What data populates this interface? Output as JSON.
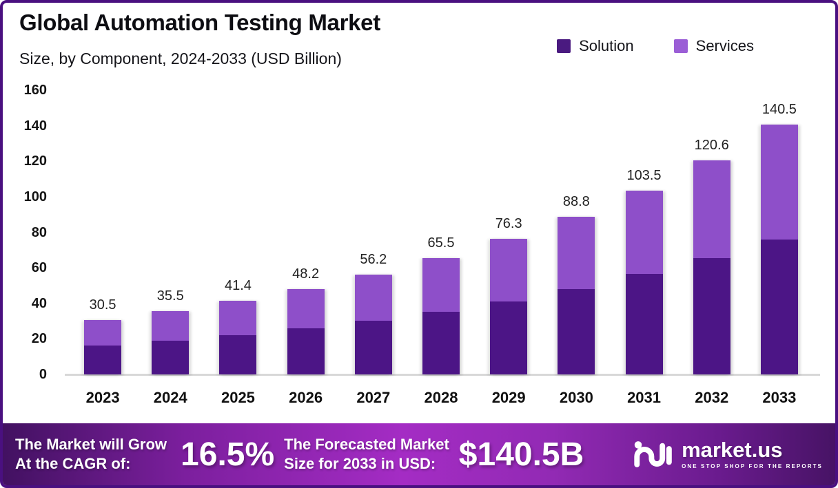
{
  "header": {
    "title": "Global Automation Testing Market",
    "subtitle": "Size, by Component, 2024-2033 (USD Billion)"
  },
  "legend": [
    {
      "label": "Solution",
      "color": "#4a1a80"
    },
    {
      "label": "Services",
      "color": "#9b5ed6"
    }
  ],
  "colors": {
    "frame_border": "#4a1080",
    "solution_bar": "#4c1586",
    "services_bar": "#8e4fc9",
    "banner_mid": "#a42cc4",
    "axis_line": "#d8d8d8"
  },
  "chart_data": {
    "type": "bar",
    "stacked": true,
    "title": "Global Automation Testing Market",
    "subtitle": "Size, by Component, 2024-2033 (USD Billion)",
    "xlabel": "",
    "ylabel": "",
    "categories": [
      "2023",
      "2024",
      "2025",
      "2026",
      "2027",
      "2028",
      "2029",
      "2030",
      "2031",
      "2032",
      "2033"
    ],
    "series": [
      {
        "name": "Solution",
        "color": "#4c1586",
        "values": [
          16.3,
          19.0,
          22.2,
          26.0,
          30.2,
          35.2,
          41.1,
          48.1,
          56.5,
          65.4,
          76.1
        ]
      },
      {
        "name": "Services",
        "color": "#8e4fc9",
        "values": [
          14.2,
          16.5,
          19.2,
          22.2,
          26.0,
          30.3,
          35.2,
          40.7,
          47.0,
          55.2,
          64.4
        ]
      }
    ],
    "totals": [
      30.5,
      35.5,
      41.4,
      48.2,
      56.2,
      65.5,
      76.3,
      88.8,
      103.5,
      120.6,
      140.5
    ],
    "total_labels": [
      "30.5",
      "35.5",
      "41.4",
      "48.2",
      "56.2",
      "65.5",
      "76.3",
      "88.8",
      "103.5",
      "120.6",
      "140.5"
    ],
    "ylim": [
      0,
      160
    ],
    "yticks": [
      0,
      20,
      40,
      60,
      80,
      100,
      120,
      140,
      160
    ],
    "grid": false,
    "legend_position": "top-right"
  },
  "footer": {
    "left_line1": "The Market will Grow",
    "left_line2": "At the CAGR of:",
    "cagr_value": "16.5%",
    "mid_line1": "The Forecasted Market",
    "mid_line2": "Size for 2033 in USD:",
    "forecast_value": "$140.5B",
    "brand": {
      "name": "market.us",
      "tagline": "ONE STOP SHOP FOR THE REPORTS"
    }
  }
}
